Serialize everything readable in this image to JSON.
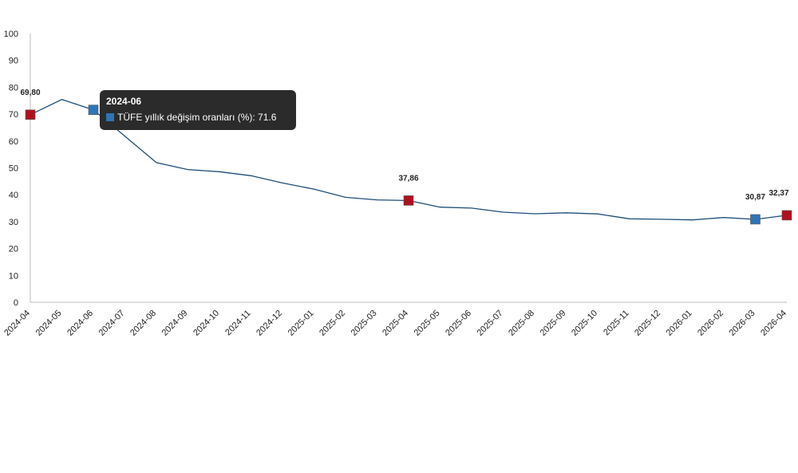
{
  "chart_data": {
    "type": "line",
    "categories": [
      "2024-04",
      "2024-05",
      "2024-06",
      "2024-07",
      "2024-08",
      "2024-09",
      "2024-10",
      "2024-11",
      "2024-12",
      "2025-01",
      "2025-02",
      "2025-03",
      "2025-04",
      "2025-05",
      "2025-06",
      "2025-07",
      "2025-08",
      "2025-09",
      "2025-10",
      "2025-11",
      "2025-12",
      "2026-01",
      "2026-02",
      "2026-03",
      "2026-04"
    ],
    "series": [
      {
        "values": [
          69.8,
          75.45,
          71.6,
          61.78,
          51.97,
          49.38,
          48.58,
          47.09,
          44.38,
          42.12,
          39.05,
          38.1,
          37.86,
          35.41,
          35.05,
          33.52,
          32.95,
          33.29,
          32.87,
          31.07,
          30.89,
          30.65,
          31.53,
          30.87,
          32.37
        ],
        "color": "#1f4e79"
      }
    ],
    "data_labels": [
      {
        "index": 0,
        "text": "69,80"
      },
      {
        "index": 12,
        "text": "37,86"
      },
      {
        "index": 23,
        "text": "30,87"
      },
      {
        "index": 24,
        "text": "32,37"
      }
    ],
    "highlight_markers": [
      {
        "index": 0,
        "color": "#b0101e"
      },
      {
        "index": 12,
        "color": "#b0101e"
      },
      {
        "index": 24,
        "color": "#b0101e"
      },
      {
        "index": 23,
        "color": "#2e75b6"
      },
      {
        "index": 2,
        "color": "#2e75b6"
      }
    ],
    "ylim": [
      0,
      100
    ],
    "yticks": [
      0,
      10,
      20,
      30,
      40,
      50,
      60,
      70,
      80,
      90,
      100
    ],
    "grid": false,
    "legend": "none"
  },
  "tooltip": {
    "title": "2024-06",
    "series_label": "TÜFE yıllık değişim oranları (%)",
    "value_text": ": 71.6",
    "swatch_color": "#2e75b6"
  }
}
